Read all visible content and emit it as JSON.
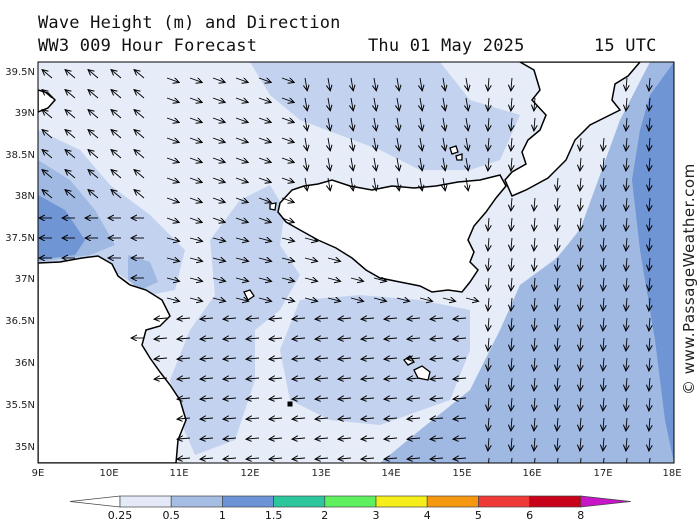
{
  "title": {
    "line1": "Wave Height (m) and Direction",
    "line2": "WW3 009 Hour Forecast",
    "date": "Thu 01 May 2025",
    "time": "15 UTC"
  },
  "credit": "© www.PassageWeather.com",
  "map": {
    "lat_labels": [
      "39.5N",
      "39N",
      "38.5N",
      "38N",
      "37.5N",
      "37N",
      "36.5N",
      "36N",
      "35.5N",
      "35N"
    ],
    "lon_labels": [
      "9E",
      "10E",
      "11E",
      "12E",
      "13E",
      "14E",
      "15E",
      "16E",
      "17E",
      "18E"
    ],
    "colors": {
      "land": "#ffffff",
      "coast": "#000000",
      "band_0_25": "#e6ecf8",
      "band_0_5": "#c3d2ee",
      "band_1": "#9fb9e3",
      "band_1_5": "#6f95d5",
      "arrow": "#000000"
    }
  },
  "legend": {
    "labels": [
      "0.25",
      "0.5",
      "1",
      "1.5",
      "2",
      "3",
      "4",
      "5",
      "6",
      "8"
    ],
    "colors": [
      "#ffffff",
      "#e3e9f6",
      "#a6bde3",
      "#6b93d6",
      "#2cc69d",
      "#5ef05f",
      "#f5ee1a",
      "#f69710",
      "#ee3a37",
      "#c9001a",
      "#c815c8"
    ]
  }
}
